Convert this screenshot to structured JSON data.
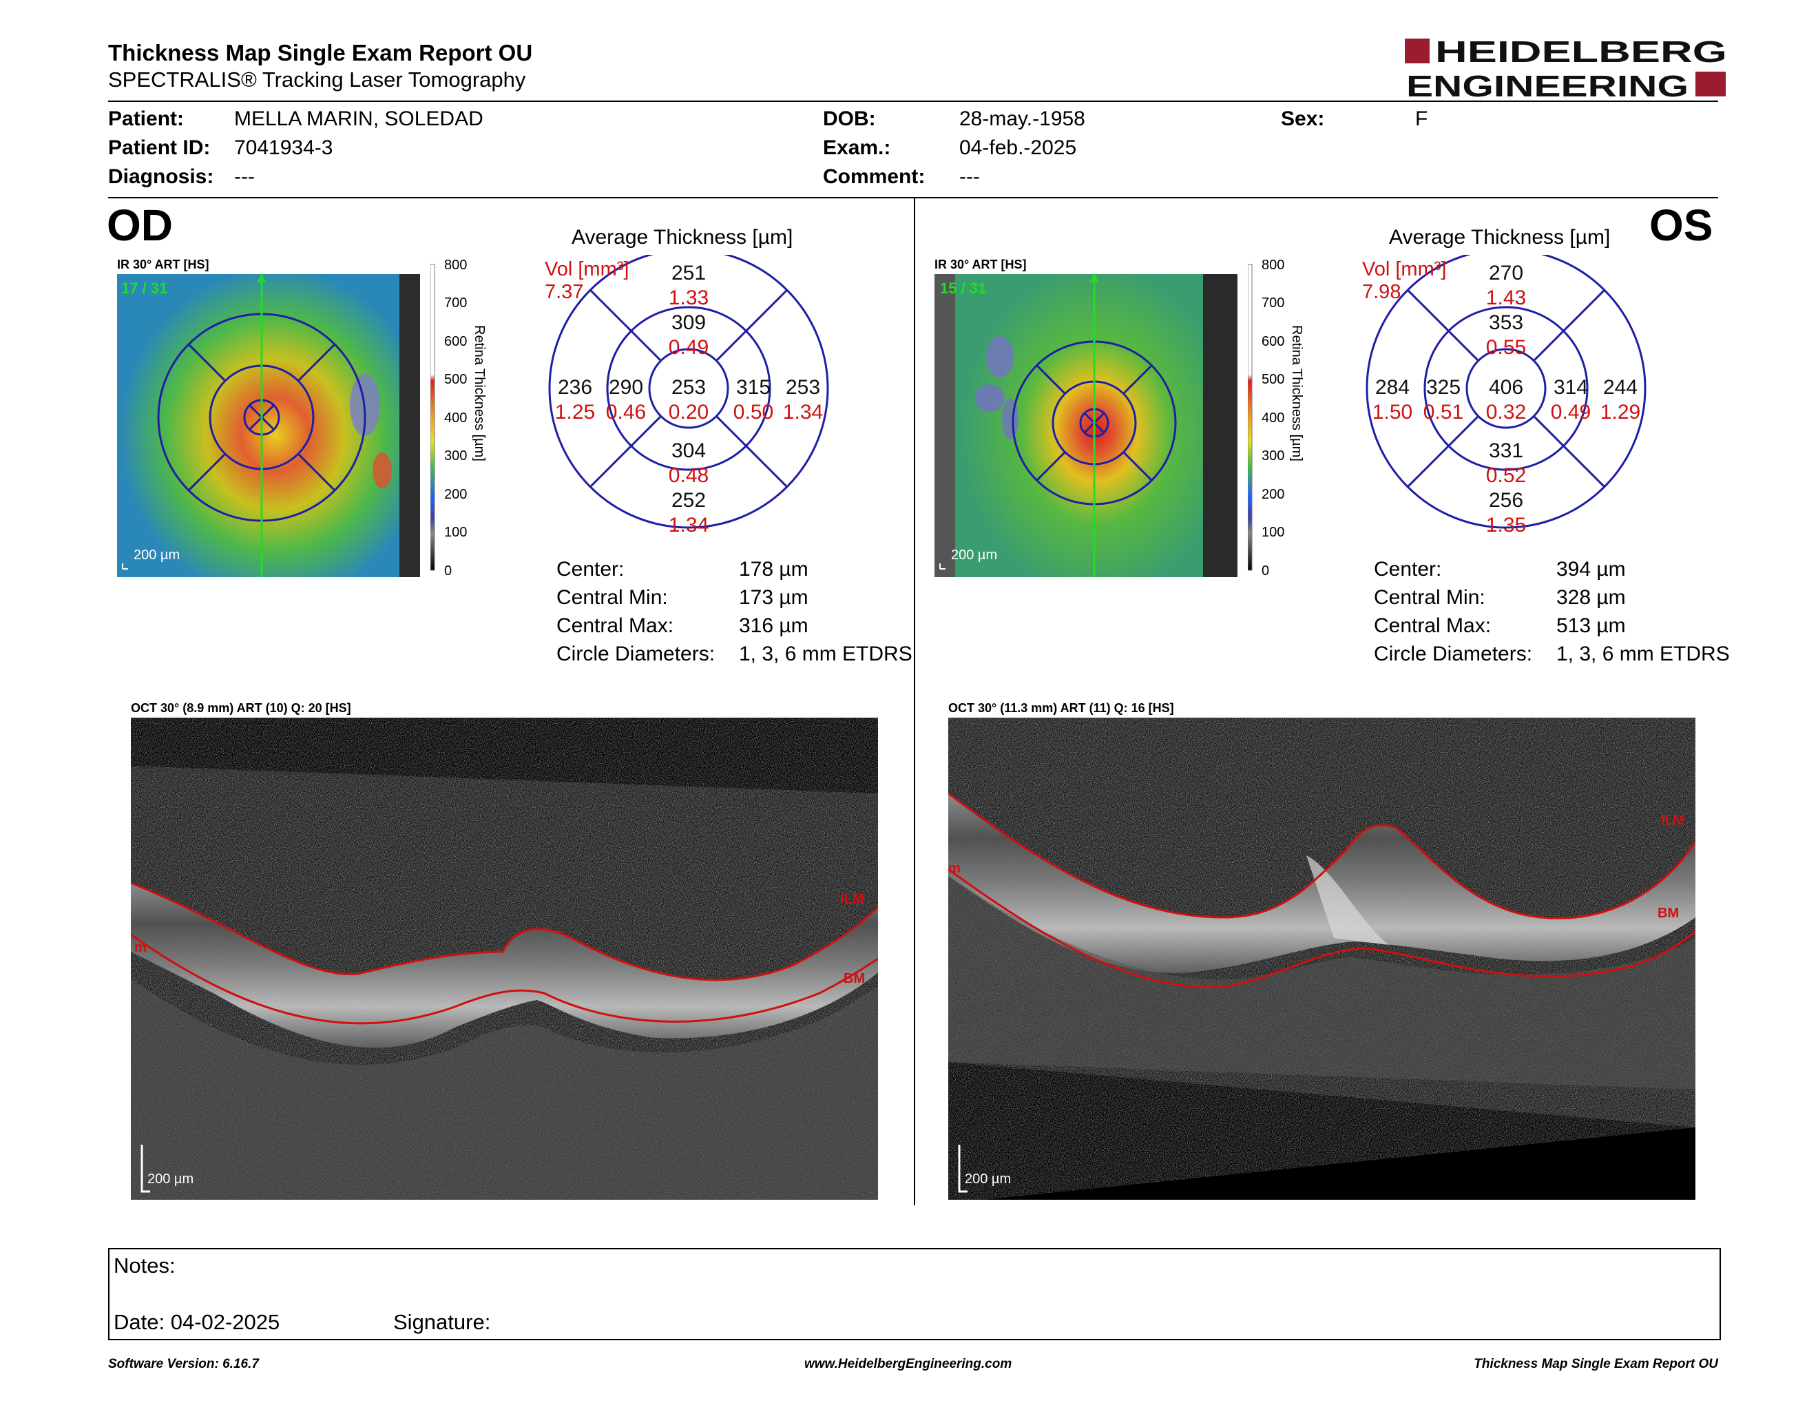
{
  "header": {
    "title": "Thickness Map Single Exam Report OU",
    "subtitle": "SPECTRALIS® Tracking Laser Tomography",
    "logo_line1": "HEIDELBERG",
    "logo_line2": "ENGINEERING",
    "logo_color": "#9b1c2e"
  },
  "patient": {
    "patient_label": "Patient:",
    "patient_value": "MELLA MARIN, SOLEDAD",
    "id_label": "Patient ID:",
    "id_value": "7041934-3",
    "diagnosis_label": "Diagnosis:",
    "diagnosis_value": "---",
    "dob_label": "DOB:",
    "dob_value": "28-may.-1958",
    "exam_label": "Exam.:",
    "exam_value": "04-feb.-2025",
    "comment_label": "Comment:",
    "comment_value": "---",
    "sex_label": "Sex:",
    "sex_value": "F"
  },
  "colorbar": {
    "ticks": [
      "800",
      "700",
      "600",
      "500",
      "400",
      "300",
      "200",
      "100",
      "0"
    ],
    "label": "Retina Thickness [µm]"
  },
  "od": {
    "eye": "OD",
    "ir_label": "IR 30° ART [HS]",
    "frames": "17 / 31",
    "scale": "200 µm",
    "avg_title": "Average Thickness [µm]",
    "vol_label": "Vol [mm³]",
    "vol_value": "7.37",
    "grid": {
      "center": [
        "253",
        "0.20"
      ],
      "inner_sup": [
        "309",
        "0.49"
      ],
      "inner_inf": [
        "304",
        "0.48"
      ],
      "inner_nas": [
        "290",
        "0.46"
      ],
      "inner_temp": [
        "315",
        "0.50"
      ],
      "outer_sup": [
        "251",
        "1.33"
      ],
      "outer_inf": [
        "252",
        "1.34"
      ],
      "outer_nas": [
        "236",
        "1.25"
      ],
      "outer_temp": [
        "253",
        "1.34"
      ]
    },
    "stats": {
      "center_label": "Center:",
      "center_value": "178 µm",
      "min_label": "Central Min:",
      "min_value": "173 µm",
      "max_label": "Central Max:",
      "max_value": "316 µm",
      "diam_label": "Circle Diameters:",
      "diam_value": "1, 3, 6 mm ETDRS"
    },
    "oct_label": "OCT 30° (8.9 mm) ART (10) Q: 20 [HS]",
    "oct_scale": "200 µm",
    "ilm": "ILM",
    "bm": "BM",
    "m": "m"
  },
  "os": {
    "eye": "OS",
    "ir_label": "IR 30° ART [HS]",
    "frames": "15 / 31",
    "scale": "200 µm",
    "avg_title": "Average Thickness [µm]",
    "vol_label": "Vol [mm³]",
    "vol_value": "7.98",
    "grid": {
      "center": [
        "406",
        "0.32"
      ],
      "inner_sup": [
        "353",
        "0.55"
      ],
      "inner_inf": [
        "331",
        "0.52"
      ],
      "inner_nas": [
        "325",
        "0.51"
      ],
      "inner_temp": [
        "314",
        "0.49"
      ],
      "outer_sup": [
        "270",
        "1.43"
      ],
      "outer_inf": [
        "256",
        "1.35"
      ],
      "outer_nas": [
        "284",
        "1.50"
      ],
      "outer_temp": [
        "244",
        "1.29"
      ]
    },
    "stats": {
      "center_label": "Center:",
      "center_value": "394 µm",
      "min_label": "Central Min:",
      "min_value": "328 µm",
      "max_label": "Central Max:",
      "max_value": "513 µm",
      "diam_label": "Circle Diameters:",
      "diam_value": "1, 3, 6 mm ETDRS"
    },
    "oct_label": "OCT 30° (11.3 mm) ART (11) Q: 16 [HS]",
    "oct_scale": "200 µm",
    "ilm": "ILM",
    "bm": "BM",
    "m": "m"
  },
  "notes": {
    "notes_label": "Notes:",
    "date_label": "Date: 04-02-2025",
    "signature_label": "Signature:"
  },
  "footer": {
    "version": "Software Version: 6.16.7",
    "website": "www.HeidelbergEngineering.com",
    "report": "Thickness Map Single Exam Report OU"
  },
  "colors": {
    "grid_blue": "#1f1fa6",
    "red": "#d01010",
    "green": "#22dd22"
  }
}
